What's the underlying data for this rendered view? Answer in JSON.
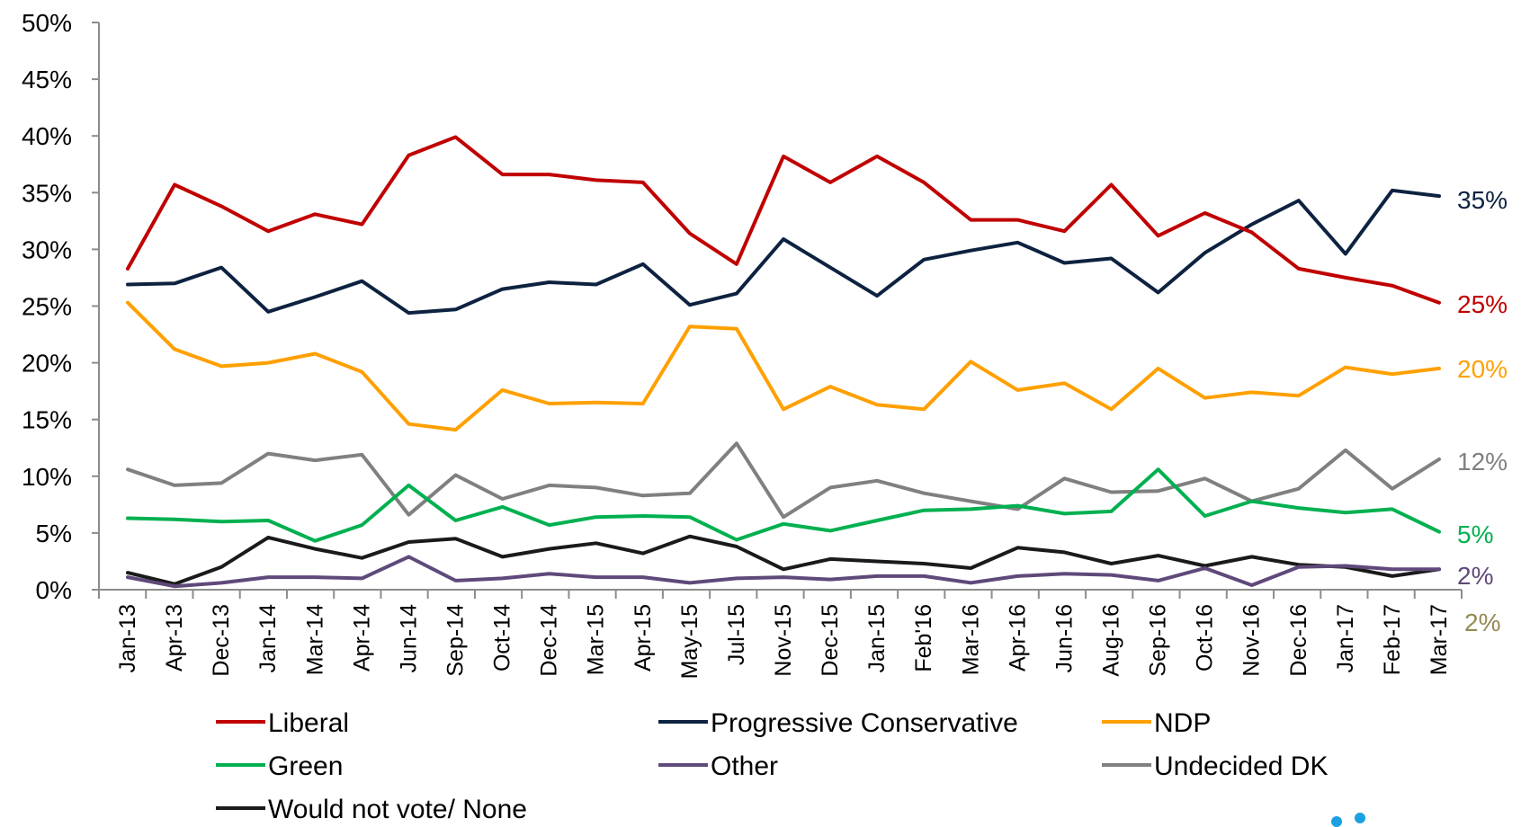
{
  "chart_data": {
    "type": "line",
    "title": "",
    "xlabel": "",
    "ylabel": "",
    "ylim": [
      0,
      50
    ],
    "yticks": [
      "0%",
      "5%",
      "10%",
      "15%",
      "20%",
      "25%",
      "30%",
      "35%",
      "40%",
      "45%",
      "50%"
    ],
    "categories": [
      "Jan-13",
      "Apr-13",
      "Dec-13",
      "Jan-14",
      "Mar-14",
      "Apr-14",
      "Jun-14",
      "Sep-14",
      "Oct-14",
      "Dec-14",
      "Mar-15",
      "Apr-15",
      "May-15",
      "Jul-15",
      "Nov-15",
      "Dec-15",
      "Jan-15",
      "Feb'16",
      "Mar-16",
      "Apr-16",
      "Jun-16",
      "Aug-16",
      "Sep-16",
      "Oct-16",
      "Nov-16",
      "Dec-16",
      "Jan-17",
      "Feb-17",
      "Mar-17"
    ],
    "grid": false,
    "legend_position": "bottom",
    "series": [
      {
        "name": "Liberal",
        "color": "#C00000",
        "values": [
          28.3,
          35.7,
          33.8,
          31.6,
          33.1,
          32.2,
          38.3,
          39.9,
          36.6,
          36.6,
          36.1,
          35.9,
          31.4,
          28.7,
          38.2,
          35.9,
          38.2,
          35.9,
          32.6,
          32.6,
          31.6,
          35.7,
          31.2,
          33.2,
          31.5,
          28.3,
          27.5,
          26.8,
          25.3
        ],
        "end_label": "25%"
      },
      {
        "name": "Progressive Conservative",
        "color": "#0D2240",
        "values": [
          26.9,
          27.0,
          28.4,
          24.5,
          25.8,
          27.2,
          24.4,
          24.7,
          26.5,
          27.1,
          26.9,
          28.7,
          25.1,
          26.1,
          30.9,
          28.4,
          25.9,
          29.1,
          29.9,
          30.6,
          28.8,
          29.2,
          26.2,
          29.7,
          32.2,
          34.3,
          29.6,
          35.2,
          34.7
        ],
        "end_label": "35%"
      },
      {
        "name": "NDP",
        "color": "#FFA000",
        "values": [
          25.3,
          21.2,
          19.7,
          20.0,
          20.8,
          19.2,
          14.6,
          14.1,
          17.6,
          16.4,
          16.5,
          16.4,
          23.2,
          23.0,
          15.9,
          17.9,
          16.3,
          15.9,
          20.1,
          17.6,
          18.2,
          15.9,
          19.5,
          16.9,
          17.4,
          17.1,
          19.6,
          19.0,
          19.5
        ],
        "end_label": "20%"
      },
      {
        "name": "Green",
        "color": "#00B050",
        "values": [
          6.3,
          6.2,
          6.0,
          6.1,
          4.3,
          5.7,
          9.2,
          6.1,
          7.3,
          5.7,
          6.4,
          6.5,
          6.4,
          4.4,
          5.8,
          5.2,
          6.1,
          7.0,
          7.1,
          7.4,
          6.7,
          6.9,
          10.6,
          6.5,
          7.8,
          7.2,
          6.8,
          7.1,
          5.1
        ],
        "end_label": "5%"
      },
      {
        "name": "Other",
        "color": "#5F497A",
        "values": [
          1.1,
          0.3,
          0.6,
          1.1,
          1.1,
          1.0,
          2.9,
          0.8,
          1.0,
          1.4,
          1.1,
          1.1,
          0.6,
          1.0,
          1.1,
          0.9,
          1.2,
          1.2,
          0.6,
          1.2,
          1.4,
          1.3,
          0.8,
          1.9,
          0.4,
          2.0,
          2.1,
          1.8,
          1.8
        ],
        "end_label": "2%"
      },
      {
        "name": "Undecided DK",
        "color": "#808080",
        "values": [
          10.6,
          9.2,
          9.4,
          12.0,
          11.4,
          11.9,
          6.6,
          10.1,
          8.0,
          9.2,
          9.0,
          8.3,
          8.5,
          12.9,
          6.4,
          9.0,
          9.6,
          8.5,
          7.8,
          7.1,
          9.8,
          8.6,
          8.7,
          9.8,
          7.8,
          8.9,
          12.3,
          8.9,
          11.5
        ],
        "end_label": "12%"
      },
      {
        "name": "Would not vote/ None",
        "color": "#1A1A1A",
        "values": [
          1.5,
          0.5,
          2.0,
          4.6,
          3.6,
          2.8,
          4.2,
          4.5,
          2.9,
          3.6,
          4.1,
          3.2,
          4.7,
          3.8,
          1.8,
          2.7,
          2.5,
          2.3,
          1.9,
          3.7,
          3.3,
          2.3,
          3.0,
          2.1,
          2.9,
          2.2,
          2.0,
          1.2,
          1.8
        ],
        "end_label": "2%",
        "end_label_color": "#948A54"
      }
    ]
  }
}
